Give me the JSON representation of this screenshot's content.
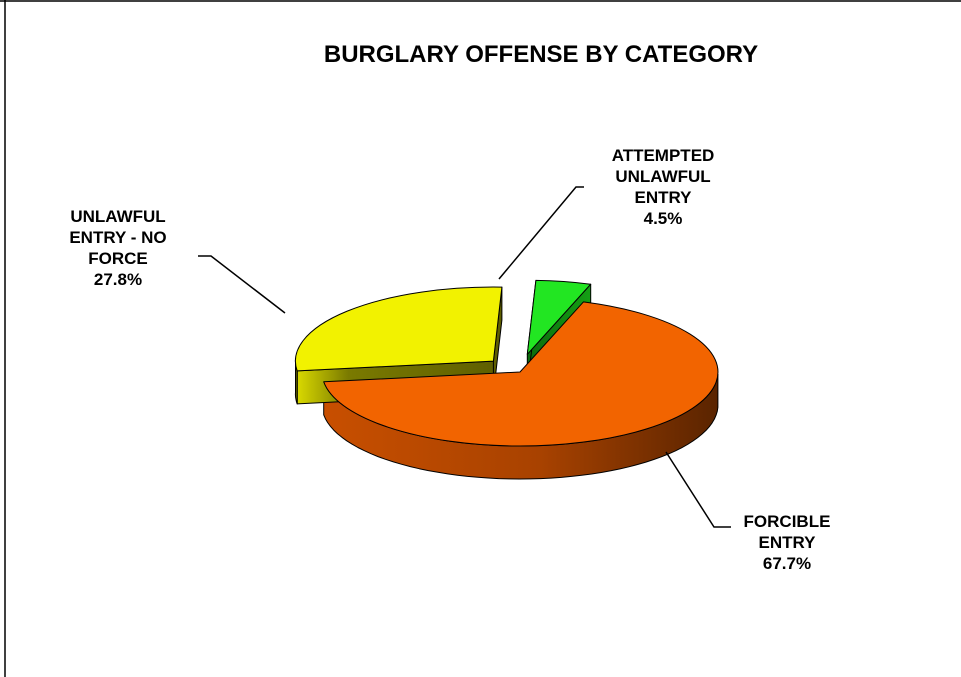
{
  "chart_data": {
    "type": "pie",
    "title": "BURGLARY OFFENSE BY CATEGORY",
    "slices": [
      {
        "label": [
          "FORCIBLE",
          "ENTRY"
        ],
        "value": 67.7,
        "value_label": "67.7%",
        "color": "#F26400"
      },
      {
        "label": [
          "UNLAWFUL",
          "ENTRY - NO",
          "FORCE"
        ],
        "value": 27.8,
        "value_label": "27.8%",
        "color": "#F2F200"
      },
      {
        "label": [
          "ATTEMPTED",
          "UNLAWFUL",
          "ENTRY"
        ],
        "value": 4.5,
        "value_label": "4.5%",
        "color": "#22E622"
      }
    ],
    "style": "3d-exploded",
    "legend": "none"
  }
}
